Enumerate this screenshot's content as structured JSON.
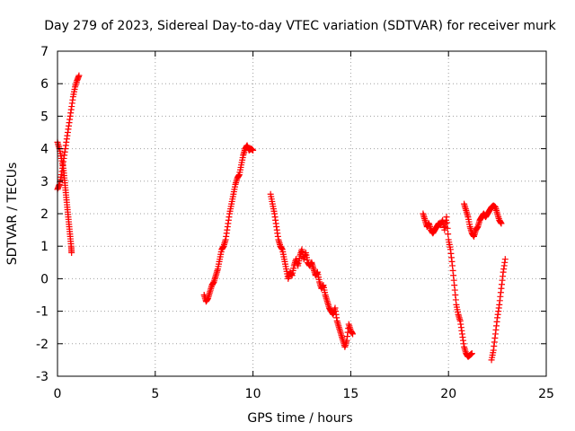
{
  "chart_data": {
    "type": "scatter",
    "title": "Day 279 of 2023, Sidereal Day-to-day VTEC variation (SDTVAR) for receiver murk",
    "xlabel": "GPS time / hours",
    "ylabel": "SDTVAR / TECUs",
    "xlim": [
      0,
      25
    ],
    "ylim": [
      -3,
      7
    ],
    "xticks": [
      0,
      5,
      10,
      15,
      20,
      25
    ],
    "yticks": [
      -3,
      -2,
      -1,
      0,
      1,
      2,
      3,
      4,
      5,
      6,
      7
    ],
    "grid": true,
    "marker": "+",
    "color": "#ff0000",
    "series": [
      {
        "name": "SDTVAR",
        "segments": [
          [
            [
              0.0,
              4.2
            ],
            [
              0.1,
              4.0
            ],
            [
              0.2,
              3.7
            ],
            [
              0.3,
              3.4
            ],
            [
              0.35,
              3.1
            ],
            [
              0.4,
              2.8
            ],
            [
              0.45,
              2.5
            ],
            [
              0.5,
              2.2
            ],
            [
              0.55,
              1.9
            ],
            [
              0.6,
              1.6
            ],
            [
              0.65,
              1.3
            ],
            [
              0.7,
              1.0
            ],
            [
              0.72,
              0.8
            ]
          ],
          [
            [
              0.0,
              2.75
            ],
            [
              0.1,
              2.9
            ],
            [
              0.2,
              3.2
            ],
            [
              0.3,
              3.6
            ],
            [
              0.4,
              4.0
            ],
            [
              0.5,
              4.4
            ],
            [
              0.6,
              4.8
            ],
            [
              0.7,
              5.2
            ],
            [
              0.8,
              5.6
            ],
            [
              0.9,
              5.9
            ],
            [
              1.0,
              6.1
            ],
            [
              1.1,
              6.25
            ]
          ],
          [
            [
              7.5,
              -0.5
            ],
            [
              7.6,
              -0.7
            ],
            [
              7.7,
              -0.6
            ],
            [
              7.8,
              -0.4
            ],
            [
              7.9,
              -0.2
            ],
            [
              8.0,
              -0.1
            ],
            [
              8.1,
              0.1
            ],
            [
              8.2,
              0.3
            ],
            [
              8.3,
              0.6
            ],
            [
              8.4,
              0.9
            ],
            [
              8.5,
              1.0
            ],
            [
              8.6,
              1.2
            ],
            [
              8.7,
              1.6
            ],
            [
              8.8,
              2.0
            ],
            [
              8.9,
              2.3
            ],
            [
              9.0,
              2.6
            ],
            [
              9.1,
              2.9
            ],
            [
              9.2,
              3.1
            ],
            [
              9.3,
              3.2
            ],
            [
              9.4,
              3.5
            ],
            [
              9.5,
              3.8
            ],
            [
              9.6,
              4.0
            ],
            [
              9.7,
              4.1
            ],
            [
              9.8,
              3.95
            ],
            [
              9.9,
              4.0
            ],
            [
              10.0,
              3.95
            ]
          ],
          [
            [
              10.9,
              2.6
            ],
            [
              11.0,
              2.3
            ],
            [
              11.1,
              2.0
            ],
            [
              11.2,
              1.6
            ],
            [
              11.3,
              1.2
            ],
            [
              11.4,
              1.0
            ],
            [
              11.5,
              0.9
            ],
            [
              11.6,
              0.6
            ],
            [
              11.7,
              0.3
            ],
            [
              11.8,
              0.0
            ],
            [
              11.9,
              0.2
            ],
            [
              12.0,
              0.1
            ],
            [
              12.1,
              0.4
            ],
            [
              12.2,
              0.6
            ],
            [
              12.3,
              0.4
            ],
            [
              12.4,
              0.7
            ],
            [
              12.5,
              0.9
            ],
            [
              12.6,
              0.6
            ],
            [
              12.7,
              0.8
            ],
            [
              12.8,
              0.5
            ],
            [
              12.9,
              0.4
            ],
            [
              13.0,
              0.5
            ],
            [
              13.1,
              0.3
            ],
            [
              13.2,
              0.1
            ],
            [
              13.3,
              0.2
            ],
            [
              13.4,
              -0.1
            ],
            [
              13.5,
              -0.3
            ],
            [
              13.6,
              -0.2
            ],
            [
              13.7,
              -0.5
            ],
            [
              13.8,
              -0.7
            ],
            [
              13.9,
              -0.9
            ],
            [
              14.0,
              -1.0
            ],
            [
              14.1,
              -1.1
            ],
            [
              14.2,
              -0.9
            ],
            [
              14.3,
              -1.3
            ],
            [
              14.4,
              -1.5
            ],
            [
              14.5,
              -1.7
            ],
            [
              14.6,
              -1.9
            ],
            [
              14.7,
              -2.1
            ],
            [
              14.8,
              -1.9
            ],
            [
              14.9,
              -1.4
            ],
            [
              15.0,
              -1.6
            ],
            [
              15.1,
              -1.7
            ]
          ],
          [
            [
              18.7,
              2.0
            ],
            [
              18.8,
              1.8
            ],
            [
              18.9,
              1.6
            ],
            [
              19.0,
              1.7
            ],
            [
              19.1,
              1.5
            ],
            [
              19.2,
              1.4
            ],
            [
              19.3,
              1.5
            ],
            [
              19.4,
              1.6
            ],
            [
              19.5,
              1.7
            ],
            [
              19.6,
              1.65
            ],
            [
              19.7,
              1.8
            ],
            [
              19.8,
              1.5
            ],
            [
              19.9,
              1.9
            ],
            [
              20.0,
              1.2
            ],
            [
              20.1,
              0.9
            ],
            [
              20.2,
              0.4
            ],
            [
              20.3,
              -0.2
            ],
            [
              20.4,
              -0.8
            ],
            [
              20.5,
              -1.1
            ],
            [
              20.6,
              -1.3
            ],
            [
              20.7,
              -1.7
            ],
            [
              20.8,
              -2.1
            ],
            [
              20.9,
              -2.3
            ],
            [
              21.0,
              -2.4
            ],
            [
              21.1,
              -2.35
            ],
            [
              21.2,
              -2.3
            ]
          ],
          [
            [
              20.8,
              2.3
            ],
            [
              20.9,
              2.1
            ],
            [
              21.0,
              1.9
            ],
            [
              21.1,
              1.6
            ],
            [
              21.2,
              1.4
            ],
            [
              21.3,
              1.3
            ],
            [
              21.4,
              1.5
            ],
            [
              21.5,
              1.6
            ],
            [
              21.6,
              1.8
            ],
            [
              21.7,
              1.9
            ],
            [
              21.8,
              2.0
            ],
            [
              21.9,
              1.9
            ],
            [
              22.0,
              2.0
            ],
            [
              22.1,
              2.1
            ],
            [
              22.2,
              2.2
            ],
            [
              22.3,
              2.25
            ],
            [
              22.4,
              2.2
            ],
            [
              22.5,
              2.0
            ],
            [
              22.6,
              1.8
            ],
            [
              22.7,
              1.7
            ]
          ],
          [
            [
              22.2,
              -2.5
            ],
            [
              22.3,
              -2.2
            ],
            [
              22.4,
              -1.7
            ],
            [
              22.5,
              -1.2
            ],
            [
              22.6,
              -0.8
            ],
            [
              22.7,
              -0.3
            ],
            [
              22.8,
              0.2
            ],
            [
              22.9,
              0.6
            ]
          ]
        ]
      }
    ]
  }
}
